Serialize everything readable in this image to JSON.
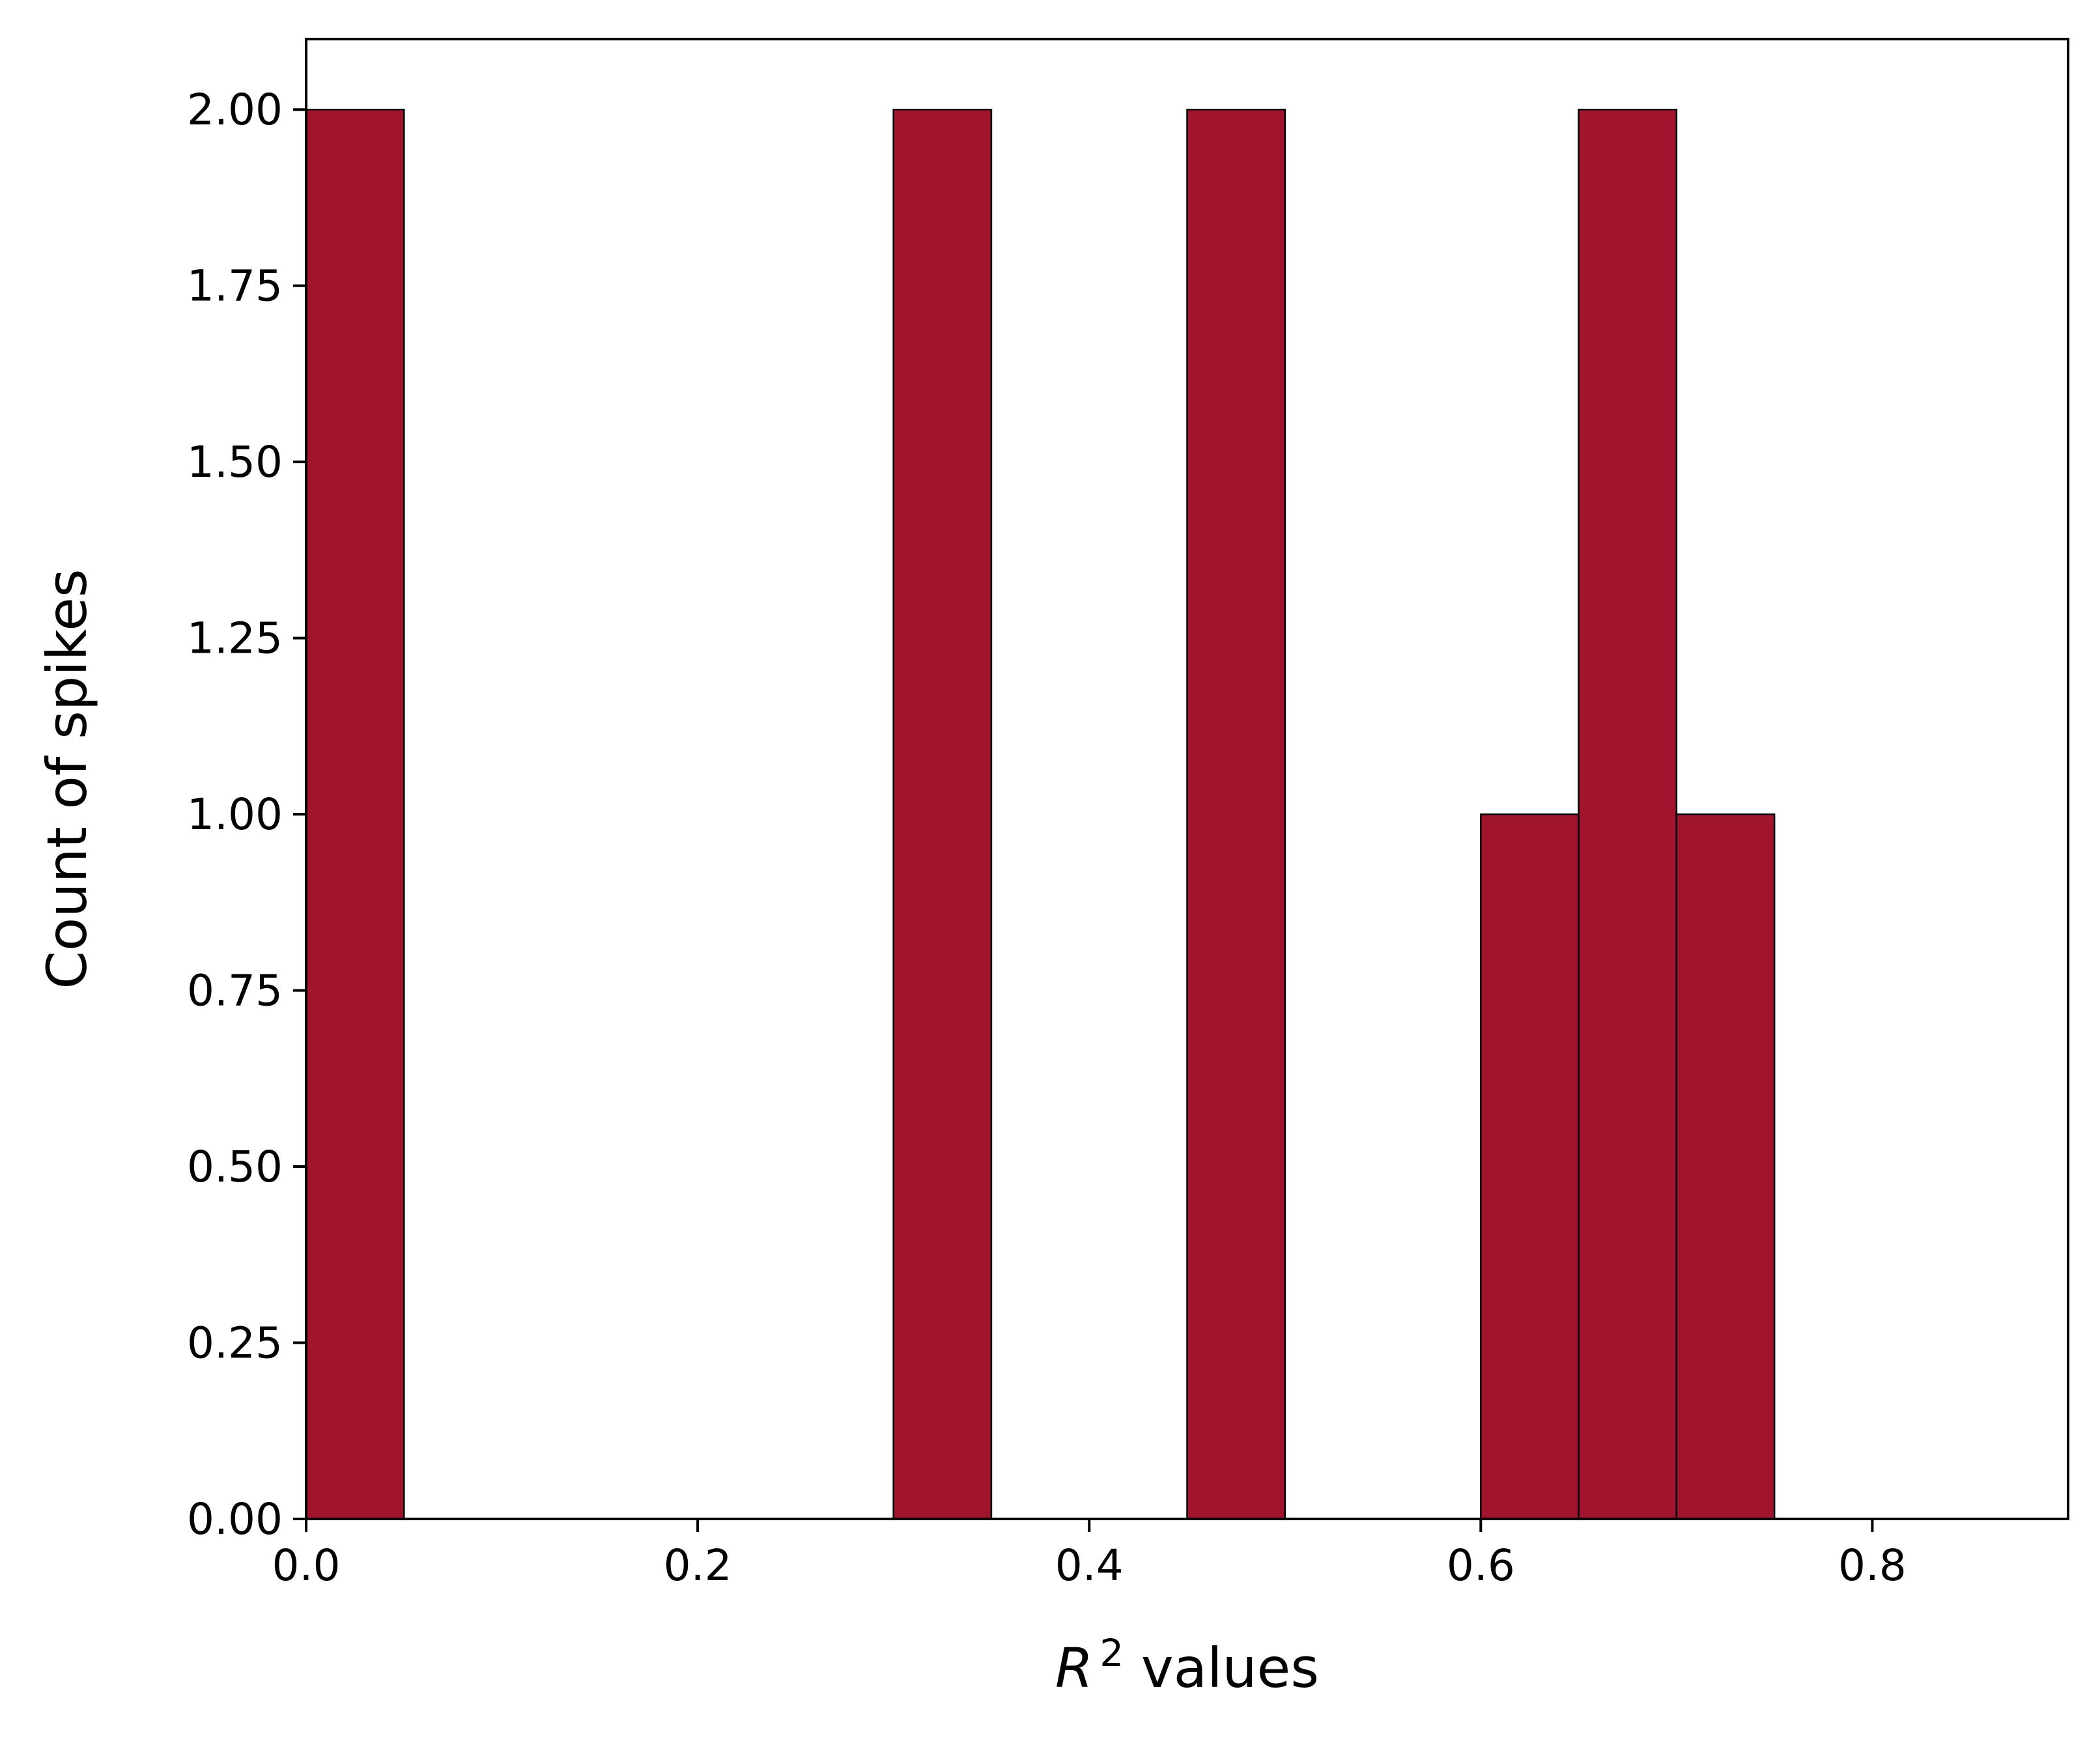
{
  "chart_data": {
    "type": "bar",
    "subtype": "histogram",
    "title": "",
    "xlabel": {
      "base": "R",
      "superscript": "2",
      "rest": " values"
    },
    "ylabel": "Count of spikes",
    "xlim": [
      0.0,
      0.9
    ],
    "ylim": [
      0.0,
      2.1
    ],
    "xticks": [
      "0.0",
      "0.2",
      "0.4",
      "0.6",
      "0.8"
    ],
    "xtick_values": [
      0.0,
      0.2,
      0.4,
      0.6,
      0.8
    ],
    "yticks": [
      "0.00",
      "0.25",
      "0.50",
      "0.75",
      "1.00",
      "1.25",
      "1.50",
      "1.75",
      "2.00"
    ],
    "ytick_values": [
      0.0,
      0.25,
      0.5,
      0.75,
      1.0,
      1.25,
      1.5,
      1.75,
      2.0
    ],
    "bins": [
      {
        "x0": 0.0,
        "x1": 0.05,
        "count": 2
      },
      {
        "x0": 0.3,
        "x1": 0.35,
        "count": 2
      },
      {
        "x0": 0.45,
        "x1": 0.5,
        "count": 2
      },
      {
        "x0": 0.6,
        "x1": 0.65,
        "count": 1
      },
      {
        "x0": 0.65,
        "x1": 0.7,
        "count": 2
      },
      {
        "x0": 0.7,
        "x1": 0.75,
        "count": 1
      }
    ],
    "bar_color": "#a0142e",
    "edge_color": "#000000",
    "grid": false,
    "legend": "none"
  }
}
